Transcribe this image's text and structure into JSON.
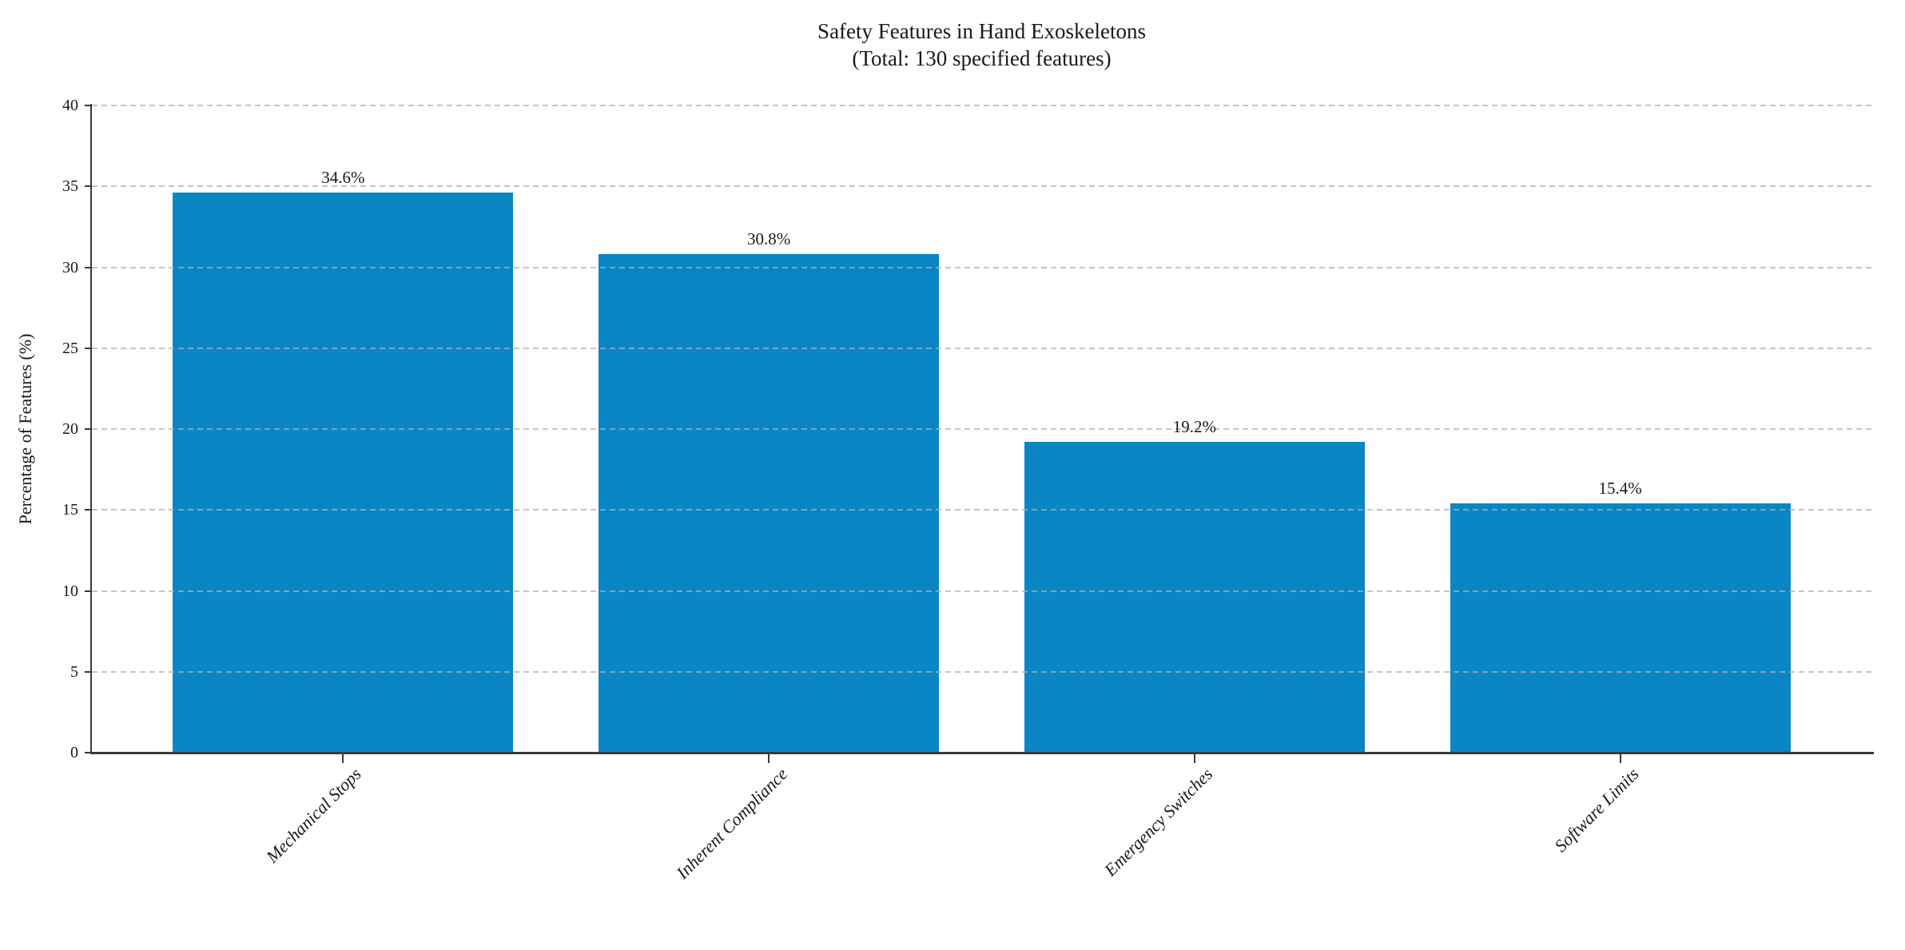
{
  "header": {
    "title_line1": "Safety Features in Hand Exoskeletons",
    "title_line2": "(Total: 130 specified features)"
  },
  "chart_data": {
    "type": "bar",
    "title": "Safety Features in Hand Exoskeletons",
    "subtitle": "(Total: 130 specified features)",
    "categories": [
      "Mechanical Stops",
      "Inherent Compliance",
      "Emergency Switches",
      "Software Limits"
    ],
    "values": [
      34.6,
      30.8,
      19.2,
      15.4
    ],
    "bar_value_labels": [
      "34.6%",
      "30.8%",
      "19.2%",
      "15.4%"
    ],
    "xlabel": "",
    "ylabel": "Percentage of Features (%)",
    "ylim": [
      0,
      40
    ],
    "yticks": [
      0,
      5,
      10,
      15,
      20,
      25,
      30,
      35,
      40
    ],
    "ytick_labels": [
      "0",
      "5",
      "10",
      "15",
      "20",
      "25",
      "30",
      "35",
      "40"
    ],
    "legend": "none",
    "grid": {
      "axis": "y",
      "linestyle": "dashed",
      "visible": true
    },
    "colors": {
      "bar": "#0b86c5",
      "spine": "#3a3a3a",
      "gridline": "rgba(176,176,176,0.72)",
      "text": "#1a1a1a"
    },
    "xtick_label_rotation_deg": 45,
    "xtick_label_style": "italic"
  }
}
